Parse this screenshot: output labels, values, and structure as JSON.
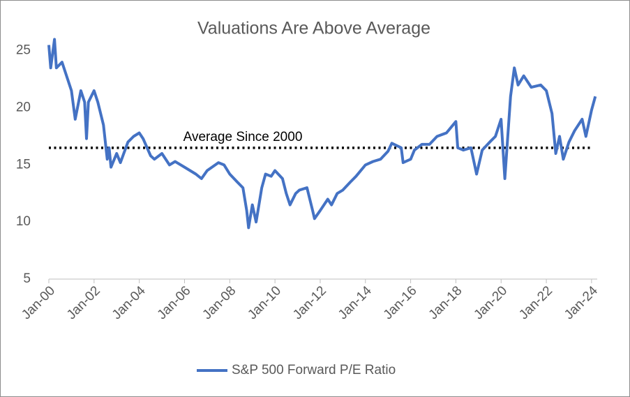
{
  "chart_data": {
    "type": "line",
    "title": "Valuations Are Above Average",
    "x": [
      "2000-01",
      "2000-02",
      "2000-04",
      "2000-05",
      "2000-08",
      "2000-11",
      "2001-01",
      "2001-03",
      "2001-06",
      "2001-08",
      "2001-09",
      "2001-10",
      "2002-01",
      "2002-03",
      "2002-06",
      "2002-08",
      "2002-09",
      "2002-10",
      "2003-01",
      "2003-03",
      "2003-07",
      "2003-10",
      "2004-01",
      "2004-03",
      "2004-07",
      "2004-09",
      "2005-01",
      "2005-05",
      "2005-08",
      "2006-01",
      "2006-07",
      "2006-10",
      "2007-01",
      "2007-07",
      "2007-10",
      "2008-01",
      "2008-05",
      "2008-08",
      "2008-10",
      "2008-11",
      "2009-01",
      "2009-03",
      "2009-06",
      "2009-08",
      "2009-11",
      "2010-01",
      "2010-05",
      "2010-07",
      "2010-09",
      "2010-12",
      "2011-02",
      "2011-06",
      "2011-09",
      "2011-10",
      "2012-01",
      "2012-05",
      "2012-07",
      "2012-10",
      "2013-01",
      "2013-05",
      "2013-08",
      "2014-01",
      "2014-05",
      "2014-09",
      "2015-01",
      "2015-03",
      "2015-08",
      "2015-09",
      "2016-01",
      "2016-03",
      "2016-07",
      "2016-11",
      "2017-03",
      "2017-08",
      "2018-01",
      "2018-02",
      "2018-05",
      "2018-09",
      "2018-12",
      "2019-03",
      "2019-07",
      "2019-10",
      "2020-01",
      "2020-03",
      "2020-06",
      "2020-08",
      "2020-10",
      "2021-01",
      "2021-05",
      "2021-10",
      "2022-01",
      "2022-04",
      "2022-06",
      "2022-08",
      "2022-10",
      "2023-01",
      "2023-04",
      "2023-08",
      "2023-10",
      "2024-01",
      "2024-03"
    ],
    "series": [
      {
        "name": "S&P 500 Forward P/E Ratio",
        "color": "#4472c4",
        "values": [
          25.5,
          23.5,
          26,
          23.5,
          24,
          22.5,
          21.5,
          19,
          21.5,
          20.5,
          17.3,
          20.5,
          21.5,
          20.5,
          18.5,
          15.5,
          16.5,
          14.8,
          16.0,
          15.2,
          17.0,
          17.5,
          17.8,
          17.3,
          15.8,
          15.5,
          16.0,
          15.0,
          15.3,
          14.8,
          14.2,
          13.8,
          14.5,
          15.2,
          15.0,
          14.2,
          13.5,
          13.0,
          11.0,
          9.5,
          11.5,
          10.0,
          13.0,
          14.2,
          14.0,
          14.5,
          13.8,
          12.5,
          11.5,
          12.5,
          12.8,
          13.0,
          11.0,
          10.3,
          11.0,
          12.0,
          11.5,
          12.5,
          12.8,
          13.5,
          14.0,
          15.0,
          15.3,
          15.5,
          16.2,
          16.9,
          16.5,
          15.2,
          15.5,
          16.3,
          16.8,
          16.8,
          17.5,
          17.8,
          18.8,
          16.5,
          16.3,
          16.5,
          14.2,
          16.3,
          17.0,
          17.5,
          19.0,
          13.8,
          21.0,
          23.5,
          22.0,
          22.8,
          21.8,
          22.0,
          21.5,
          19.5,
          16.0,
          17.5,
          15.5,
          17.0,
          18.0,
          19.0,
          17.5,
          19.8,
          21.0
        ]
      }
    ],
    "reference_line": {
      "value": 16.5,
      "label": "Average Since 2000",
      "color": "#000000"
    },
    "xlim": [
      "2000-01",
      "2024-04"
    ],
    "xticks": [
      {
        "value": "2000-01",
        "label": "Jan-00"
      },
      {
        "value": "2002-01",
        "label": "Jan-02"
      },
      {
        "value": "2004-01",
        "label": "Jan-04"
      },
      {
        "value": "2006-01",
        "label": "Jan-06"
      },
      {
        "value": "2008-01",
        "label": "Jan-08"
      },
      {
        "value": "2010-01",
        "label": "Jan-10"
      },
      {
        "value": "2012-01",
        "label": "Jan-12"
      },
      {
        "value": "2014-01",
        "label": "Jan-14"
      },
      {
        "value": "2016-01",
        "label": "Jan-16"
      },
      {
        "value": "2018-01",
        "label": "Jan-18"
      },
      {
        "value": "2020-01",
        "label": "Jan-20"
      },
      {
        "value": "2022-01",
        "label": "Jan-22"
      },
      {
        "value": "2024-01",
        "label": "Jan-24"
      }
    ],
    "ylim": [
      5,
      27
    ],
    "yticks": [
      5,
      10,
      15,
      20,
      25
    ],
    "grid": false
  }
}
